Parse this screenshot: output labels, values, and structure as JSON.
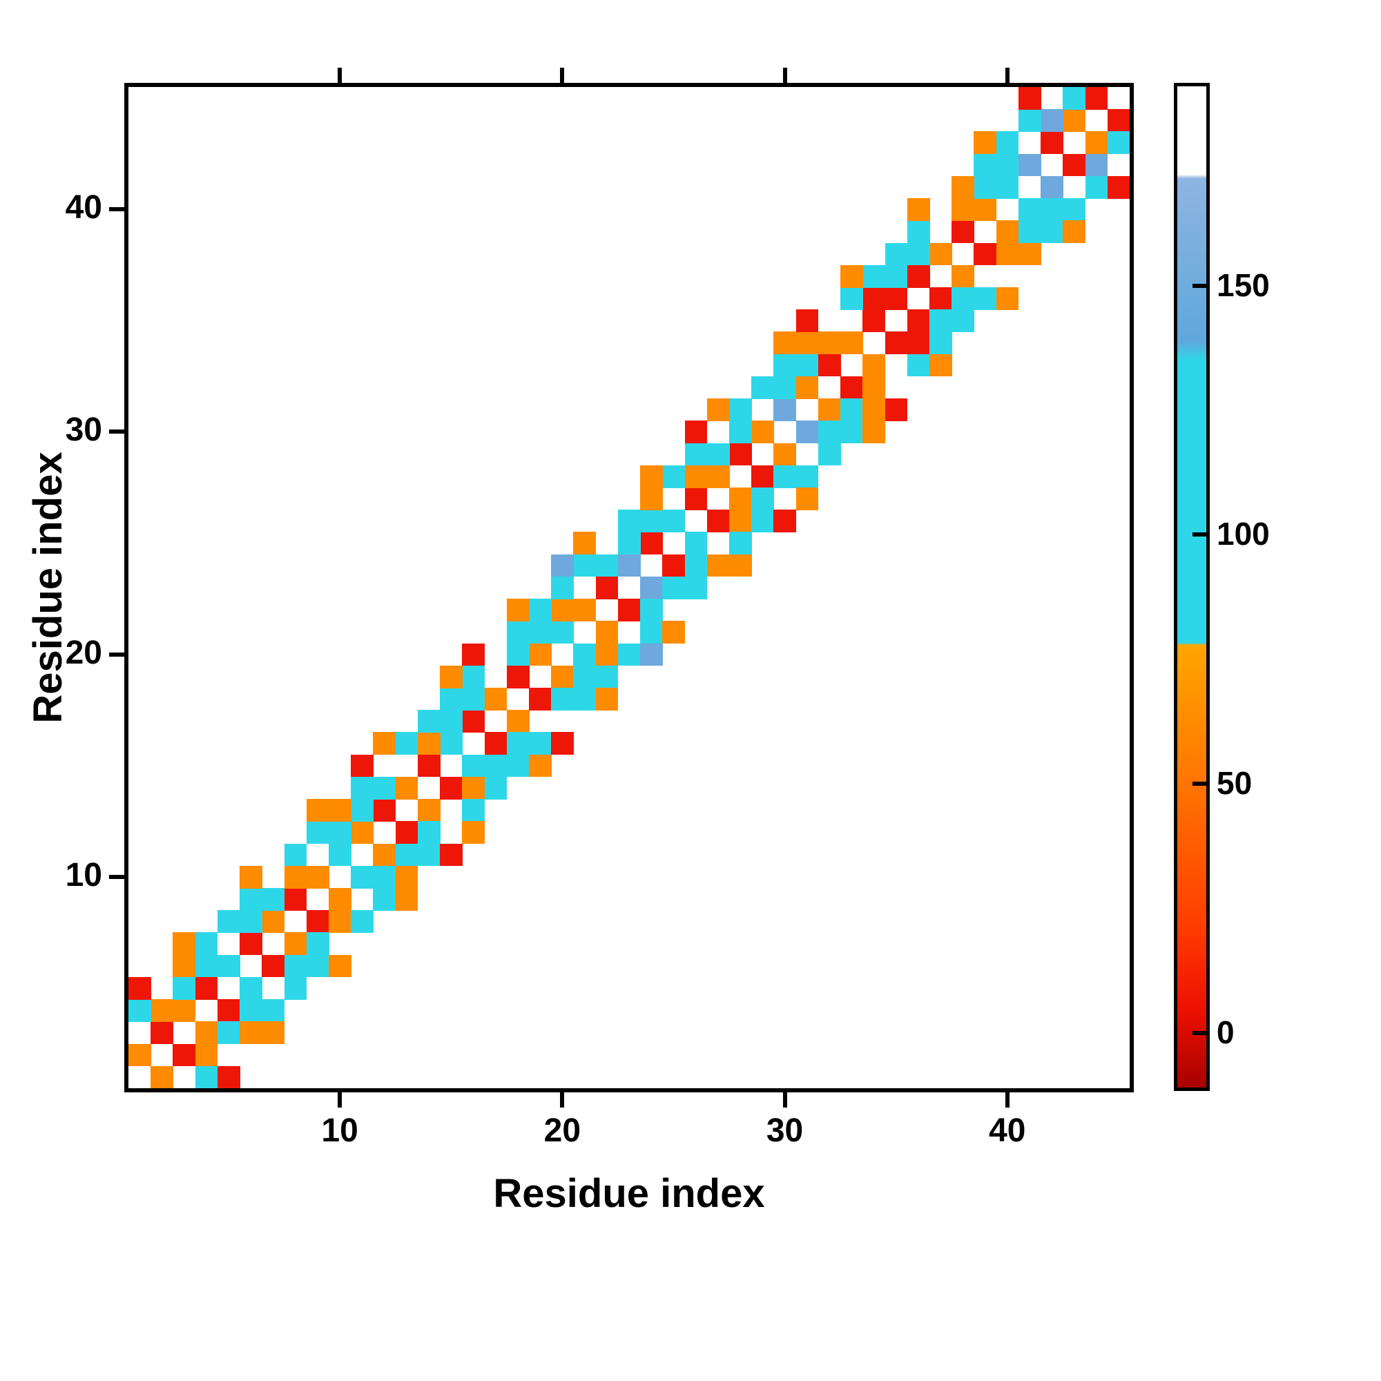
{
  "chart_data": {
    "type": "heatmap",
    "title": "",
    "xlabel": "Residue index",
    "ylabel": "Residue index",
    "n_residues": 45,
    "x_ticks": [
      10,
      20,
      30,
      40
    ],
    "y_ticks": [
      10,
      20,
      30,
      40
    ],
    "symmetric": true,
    "grid": false,
    "value_scale": {
      "min": -11,
      "max": 190
    },
    "colorbar": {
      "position": "right",
      "ticks": [
        0,
        50,
        100,
        150
      ],
      "gradient_stops": [
        [
          0,
          "#a80000"
        ],
        [
          8,
          "#ee1100"
        ],
        [
          16,
          "#ff3c00"
        ],
        [
          30,
          "#ff7300"
        ],
        [
          44.2,
          "#ffa600"
        ],
        [
          44.4,
          "#2ed7e8"
        ],
        [
          72.6,
          "#2ed7e8"
        ],
        [
          74.5,
          "#5fa8dc"
        ],
        [
          90.8,
          "#8fb4e0"
        ],
        [
          91.2,
          "#ffffff"
        ],
        [
          100,
          "#ffffff"
        ]
      ]
    },
    "colormap_bands": [
      {
        "max": 20,
        "color": "#ee1607",
        "label": "red"
      },
      {
        "max": 46,
        "color": "#f4540a",
        "label": "red-orange"
      },
      {
        "max": 78,
        "color": "#ff8b00",
        "label": "orange"
      },
      {
        "max": 135,
        "color": "#2ed7e8",
        "label": "cyan"
      },
      {
        "max": 172,
        "color": "#6fa8dc",
        "label": "steel-blue"
      },
      {
        "max": 999,
        "color": "#ffffff",
        "label": "white"
      }
    ],
    "cells": [
      [
        1,
        2,
        55
      ],
      [
        2,
        3,
        18
      ],
      [
        3,
        4,
        55
      ],
      [
        4,
        5,
        18
      ],
      [
        5,
        6,
        100
      ],
      [
        6,
        7,
        18
      ],
      [
        7,
        8,
        55
      ],
      [
        8,
        9,
        18
      ],
      [
        9,
        10,
        55
      ],
      [
        10,
        11,
        100
      ],
      [
        11,
        12,
        55
      ],
      [
        12,
        13,
        18
      ],
      [
        13,
        14,
        55
      ],
      [
        14,
        15,
        18
      ],
      [
        15,
        16,
        100
      ],
      [
        16,
        17,
        18
      ],
      [
        17,
        18,
        55
      ],
      [
        18,
        19,
        18
      ],
      [
        19,
        20,
        55
      ],
      [
        20,
        21,
        100
      ],
      [
        21,
        22,
        55
      ],
      [
        22,
        23,
        18
      ],
      [
        23,
        24,
        145
      ],
      [
        24,
        25,
        18
      ],
      [
        25,
        26,
        100
      ],
      [
        26,
        27,
        18
      ],
      [
        27,
        28,
        55
      ],
      [
        28,
        29,
        18
      ],
      [
        29,
        30,
        55
      ],
      [
        30,
        31,
        148
      ],
      [
        31,
        32,
        55
      ],
      [
        32,
        33,
        18
      ],
      [
        33,
        34,
        55
      ],
      [
        34,
        35,
        18
      ],
      [
        35,
        36,
        5
      ],
      [
        36,
        37,
        18
      ],
      [
        37,
        38,
        55
      ],
      [
        38,
        39,
        18
      ],
      [
        39,
        40,
        55
      ],
      [
        40,
        41,
        100
      ],
      [
        41,
        42,
        142
      ],
      [
        42,
        43,
        18
      ],
      [
        43,
        44,
        55
      ],
      [
        44,
        45,
        18
      ],
      [
        2,
        4,
        55
      ],
      [
        3,
        5,
        100
      ],
      [
        4,
        6,
        100
      ],
      [
        6,
        8,
        100
      ],
      [
        7,
        9,
        100
      ],
      [
        8,
        10,
        55
      ],
      [
        10,
        12,
        100
      ],
      [
        11,
        13,
        100
      ],
      [
        12,
        14,
        100
      ],
      [
        14,
        16,
        55
      ],
      [
        15,
        17,
        100
      ],
      [
        16,
        18,
        100
      ],
      [
        18,
        20,
        100
      ],
      [
        19,
        21,
        100
      ],
      [
        20,
        22,
        55
      ],
      [
        22,
        24,
        100
      ],
      [
        23,
        25,
        100
      ],
      [
        24,
        26,
        100
      ],
      [
        26,
        28,
        55
      ],
      [
        27,
        29,
        100
      ],
      [
        28,
        30,
        100
      ],
      [
        30,
        32,
        100
      ],
      [
        31,
        33,
        100
      ],
      [
        32,
        34,
        55
      ],
      [
        34,
        36,
        5
      ],
      [
        35,
        37,
        100
      ],
      [
        36,
        38,
        100
      ],
      [
        38,
        40,
        55
      ],
      [
        39,
        41,
        100
      ],
      [
        40,
        42,
        100
      ],
      [
        42,
        44,
        140
      ],
      [
        43,
        45,
        100
      ],
      [
        1,
        4,
        103
      ],
      [
        3,
        6,
        50
      ],
      [
        4,
        7,
        103
      ],
      [
        5,
        8,
        103
      ],
      [
        6,
        9,
        103
      ],
      [
        8,
        11,
        103
      ],
      [
        9,
        12,
        103
      ],
      [
        10,
        13,
        50
      ],
      [
        11,
        14,
        103
      ],
      [
        13,
        16,
        103
      ],
      [
        14,
        17,
        103
      ],
      [
        15,
        18,
        103
      ],
      [
        16,
        19,
        103
      ],
      [
        18,
        21,
        103
      ],
      [
        19,
        22,
        103
      ],
      [
        20,
        23,
        103
      ],
      [
        21,
        24,
        103
      ],
      [
        23,
        26,
        103
      ],
      [
        24,
        27,
        50
      ],
      [
        25,
        28,
        103
      ],
      [
        26,
        29,
        103
      ],
      [
        28,
        31,
        103
      ],
      [
        29,
        32,
        103
      ],
      [
        30,
        33,
        103
      ],
      [
        31,
        34,
        50
      ],
      [
        33,
        36,
        103
      ],
      [
        34,
        37,
        103
      ],
      [
        35,
        38,
        103
      ],
      [
        36,
        39,
        103
      ],
      [
        38,
        41,
        50
      ],
      [
        39,
        42,
        103
      ],
      [
        40,
        43,
        103
      ],
      [
        41,
        44,
        103
      ],
      [
        1,
        5,
        15
      ],
      [
        3,
        7,
        52
      ],
      [
        6,
        10,
        52
      ],
      [
        9,
        13,
        52
      ],
      [
        11,
        15,
        15
      ],
      [
        12,
        16,
        52
      ],
      [
        15,
        19,
        52
      ],
      [
        16,
        20,
        15
      ],
      [
        18,
        22,
        52
      ],
      [
        20,
        24,
        145
      ],
      [
        21,
        25,
        52
      ],
      [
        24,
        28,
        52
      ],
      [
        26,
        30,
        15
      ],
      [
        27,
        31,
        52
      ],
      [
        30,
        34,
        52
      ],
      [
        31,
        35,
        15
      ],
      [
        33,
        37,
        52
      ],
      [
        36,
        40,
        52
      ],
      [
        39,
        43,
        52
      ],
      [
        41,
        45,
        15
      ]
    ]
  }
}
